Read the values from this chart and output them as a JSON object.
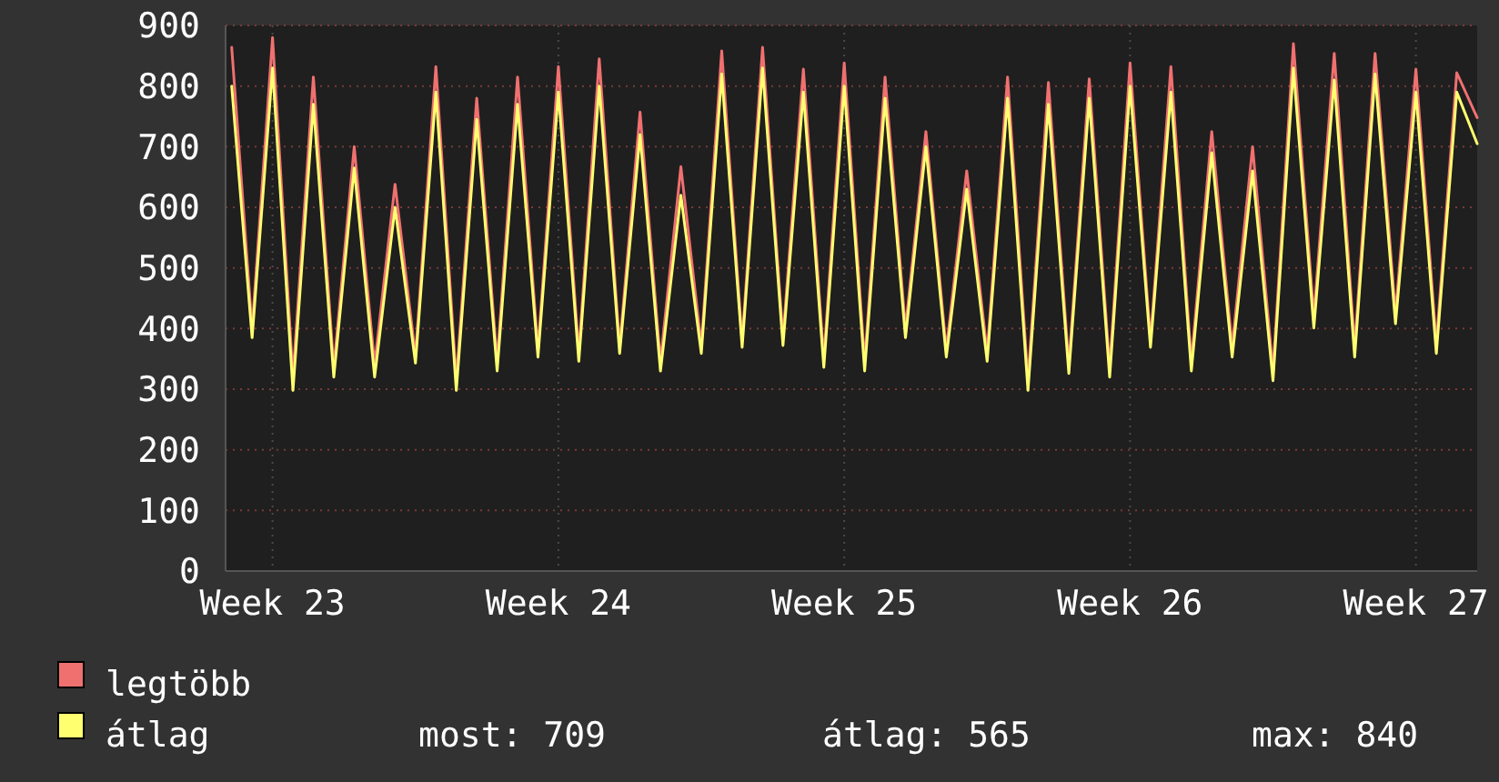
{
  "chart_data": {
    "type": "line",
    "categories": [
      null,
      null,
      "Week 23",
      null,
      null,
      null,
      null,
      null,
      null,
      null,
      null,
      null,
      null,
      null,
      null,
      null,
      "Week 24",
      null,
      null,
      null,
      null,
      null,
      null,
      null,
      null,
      null,
      null,
      null,
      null,
      null,
      "Week 25",
      null,
      null,
      null,
      null,
      null,
      null,
      null,
      null,
      null,
      null,
      null,
      null,
      null,
      "Week 26",
      null,
      null,
      null,
      null,
      null,
      null,
      null,
      null,
      null,
      null,
      null,
      null,
      null,
      "Week 27",
      null,
      null,
      null
    ],
    "series": [
      {
        "name": "legtöbb",
        "color": "#f07070",
        "values": [
          864,
          400,
          880,
          320,
          815,
          335,
          700,
          340,
          638,
          355,
          832,
          315,
          780,
          345,
          815,
          365,
          832,
          360,
          845,
          370,
          757,
          345,
          667,
          372,
          858,
          380,
          864,
          385,
          828,
          350,
          838,
          345,
          815,
          400,
          725,
          365,
          660,
          360,
          815,
          315,
          806,
          340,
          812,
          335,
          838,
          380,
          832,
          345,
          725,
          370,
          700,
          330,
          870,
          420,
          854,
          370,
          854,
          425,
          828,
          375,
          822,
          748
        ]
      },
      {
        "name": "átlag",
        "color": "#ffff70",
        "values": [
          800,
          385,
          830,
          298,
          770,
          320,
          665,
          320,
          600,
          343,
          790,
          298,
          745,
          330,
          770,
          353,
          790,
          346,
          800,
          359,
          720,
          330,
          620,
          359,
          820,
          369,
          830,
          372,
          790,
          336,
          800,
          330,
          780,
          385,
          700,
          353,
          630,
          346,
          780,
          298,
          770,
          326,
          780,
          320,
          800,
          369,
          790,
          330,
          690,
          353,
          660,
          314,
          830,
          401,
          810,
          353,
          820,
          408,
          790,
          359,
          790,
          705
        ]
      }
    ],
    "ylim": [
      0,
      900
    ],
    "yticks": [
      0,
      100,
      200,
      300,
      400,
      500,
      600,
      700,
      800,
      900
    ],
    "grid": true,
    "legend": "bottom left",
    "line_style": "solid",
    "annotations": [
      "most: 709",
      "átlag: 565",
      "max: 840"
    ]
  }
}
